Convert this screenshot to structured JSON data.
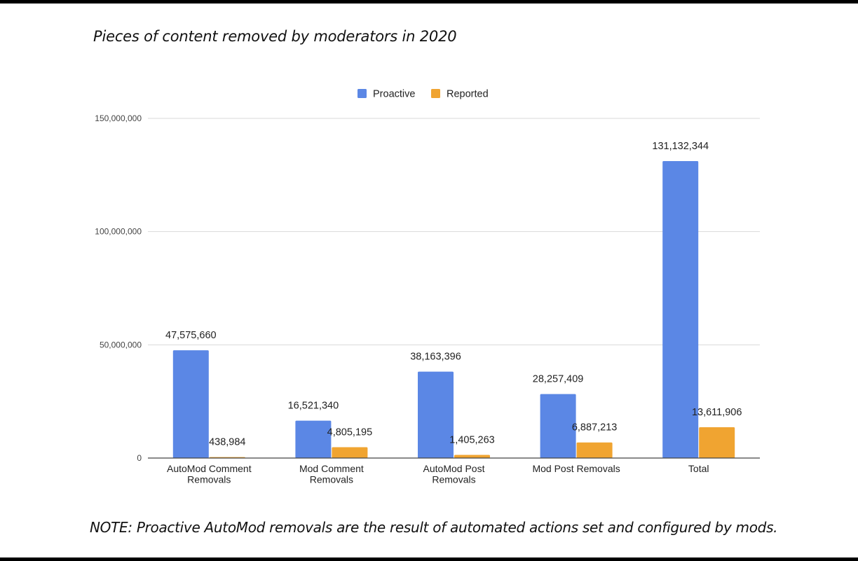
{
  "title": "Pieces of content removed by moderators in 2020",
  "note": "NOTE: Proactive AutoMod removals are the result of automated actions set and configured by mods.",
  "colors": {
    "proactive": "#5b87e5",
    "reported": "#f0a431",
    "grid": "#d9d9d9",
    "axis": "#444444",
    "text": "#222222"
  },
  "chart_data": {
    "type": "bar",
    "title": "Pieces of content removed by moderators in 2020",
    "categories": [
      [
        "AutoMod Comment",
        "Removals"
      ],
      [
        "Mod Comment",
        "Removals"
      ],
      [
        "AutoMod Post",
        "Removals"
      ],
      [
        "Mod Post Removals"
      ],
      [
        "Total"
      ]
    ],
    "series": [
      {
        "name": "Proactive",
        "values": [
          47575660,
          16521340,
          38163396,
          28257409,
          131132344
        ],
        "labels": [
          "47,575,660",
          "16,521,340",
          "38,163,396",
          "28,257,409",
          "131,132,344"
        ]
      },
      {
        "name": "Reported",
        "values": [
          438984,
          4805195,
          1405263,
          6887213,
          13611906
        ],
        "labels": [
          "438,984",
          "4,805,195",
          "1,405,263",
          "6,887,213",
          "13,611,906"
        ]
      }
    ],
    "yticks": [
      0,
      50000000,
      100000000,
      150000000
    ],
    "ytick_labels": [
      "0",
      "50,000,000",
      "100,000,000",
      "150,000,000"
    ],
    "ylim": [
      0,
      150000000
    ],
    "legend": "top-center",
    "grid": true
  }
}
